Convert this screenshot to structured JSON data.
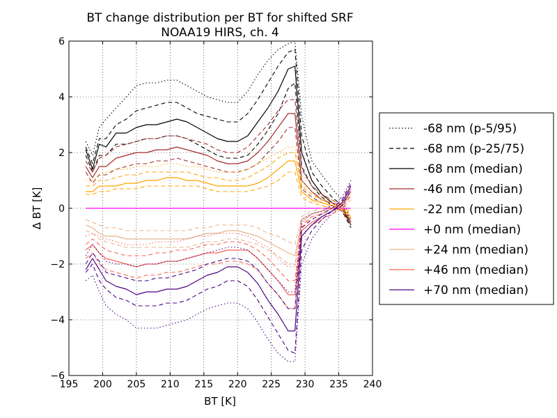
{
  "chart_data": {
    "type": "line",
    "title": "BT change distribution per BT for shifted SRF",
    "subtitle": "NOAA19 HIRS, ch. 4",
    "xlabel": "BT [K]",
    "ylabel": "Δ BT [K]",
    "xlim": [
      195,
      240
    ],
    "ylim": [
      -6,
      6
    ],
    "xticks": [
      "195",
      "200",
      "205",
      "210",
      "215",
      "220",
      "225",
      "230",
      "235",
      "240"
    ],
    "yticks": [
      "6",
      "4",
      "2",
      "0",
      "−2",
      "−4",
      "−6"
    ],
    "grid": true,
    "legend_position": "right",
    "x": [
      197.5,
      198.5,
      199.5,
      200.5,
      202,
      203.5,
      205,
      206.5,
      208,
      209.5,
      211,
      212.5,
      214,
      215.5,
      217,
      218.5,
      220,
      221.5,
      223,
      224.5,
      226,
      227.5,
      228.5,
      229.5,
      231,
      232.5,
      234,
      235.5,
      236.8
    ],
    "legend": [
      {
        "label": "-68 nm (p-5/95)",
        "color": "#000000",
        "dash": "dotted"
      },
      {
        "label": "-68 nm (p-25/75)",
        "color": "#000000",
        "dash": "dashed"
      },
      {
        "label": "-68 nm (median)",
        "color": "#000000",
        "dash": "solid"
      },
      {
        "label": "-46 nm (median)",
        "color": "#a52a2a",
        "dash": "solid"
      },
      {
        "label": "-22 nm (median)",
        "color": "#ffa500",
        "dash": "solid"
      },
      {
        "label": "+0 nm (median)",
        "color": "#ff00ff",
        "dash": "solid"
      },
      {
        "label": "+24 nm (median)",
        "color": "#e8b48c",
        "dash": "solid"
      },
      {
        "label": "+46 nm (median)",
        "color": "#fa6450",
        "dash": "solid"
      },
      {
        "label": "+70 nm (median)",
        "color": "#4b0082",
        "dash": "solid"
      }
    ],
    "series": [
      {
        "color": "#000000",
        "dash": "solid",
        "values": [
          2.1,
          1.4,
          2.3,
          2.2,
          2.7,
          2.7,
          2.9,
          3.0,
          3.0,
          3.1,
          3.2,
          3.1,
          2.9,
          2.7,
          2.5,
          2.4,
          2.4,
          2.6,
          3.1,
          3.6,
          4.2,
          5.0,
          5.1,
          2.0,
          1.0,
          0.5,
          0.2,
          0.0,
          -0.6
        ]
      },
      {
        "color": "#000000",
        "dash": "dashed",
        "values": [
          2.2,
          1.6,
          2.5,
          2.5,
          3.0,
          3.2,
          3.5,
          3.6,
          3.7,
          3.8,
          3.8,
          3.6,
          3.4,
          3.3,
          3.2,
          3.1,
          3.1,
          3.4,
          3.9,
          4.5,
          5.1,
          5.6,
          5.7,
          2.6,
          1.3,
          0.8,
          0.4,
          0.1,
          -0.5
        ]
      },
      {
        "color": "#000000",
        "dash": "dotted",
        "values": [
          2.4,
          1.9,
          2.9,
          3.2,
          3.6,
          4.0,
          4.4,
          4.5,
          4.5,
          4.6,
          4.6,
          4.4,
          4.2,
          4.0,
          3.9,
          3.8,
          3.8,
          4.2,
          4.8,
          5.3,
          5.7,
          5.9,
          6.0,
          3.3,
          1.7,
          1.2,
          0.7,
          0.3,
          -0.4
        ]
      },
      {
        "color": "#000000",
        "dash": "dashed",
        "values": [
          1.9,
          1.3,
          1.9,
          1.9,
          2.3,
          2.3,
          2.4,
          2.5,
          2.5,
          2.6,
          2.6,
          2.5,
          2.3,
          2.1,
          1.9,
          1.8,
          1.8,
          1.9,
          2.3,
          2.8,
          3.4,
          4.3,
          4.5,
          1.5,
          0.8,
          0.4,
          0.1,
          -0.1,
          -0.7
        ]
      },
      {
        "color": "#a52a2a",
        "dash": "solid",
        "values": [
          1.5,
          1.1,
          1.5,
          1.5,
          1.8,
          1.9,
          2.0,
          2.0,
          2.1,
          2.1,
          2.2,
          2.1,
          2.0,
          1.9,
          1.7,
          1.6,
          1.6,
          1.7,
          2.0,
          2.4,
          2.9,
          3.4,
          3.4,
          1.0,
          0.6,
          0.3,
          0.2,
          0.0,
          -0.5
        ]
      },
      {
        "color": "#a52a2a",
        "dash": "dashed",
        "values": [
          1.7,
          1.3,
          1.8,
          1.9,
          2.2,
          2.3,
          2.4,
          2.5,
          2.5,
          2.6,
          2.6,
          2.5,
          2.4,
          2.3,
          2.1,
          2.0,
          2.0,
          2.2,
          2.6,
          3.0,
          3.5,
          3.9,
          3.9,
          1.4,
          0.8,
          0.5,
          0.3,
          0.1,
          -0.4
        ]
      },
      {
        "color": "#a52a2a",
        "dash": "dashed",
        "values": [
          1.3,
          0.9,
          1.2,
          1.2,
          1.4,
          1.5,
          1.6,
          1.6,
          1.7,
          1.7,
          1.8,
          1.7,
          1.6,
          1.5,
          1.4,
          1.3,
          1.3,
          1.4,
          1.6,
          2.0,
          2.4,
          2.9,
          2.9,
          0.7,
          0.4,
          0.2,
          0.1,
          -0.1,
          -0.6
        ]
      },
      {
        "color": "#ffa500",
        "dash": "solid",
        "values": [
          0.6,
          0.6,
          0.8,
          0.8,
          0.8,
          0.9,
          0.9,
          1.0,
          1.0,
          1.1,
          1.1,
          1.0,
          1.0,
          0.9,
          0.8,
          0.8,
          0.8,
          0.8,
          0.9,
          1.1,
          1.4,
          1.7,
          1.7,
          0.6,
          0.3,
          0.2,
          0.1,
          0.0,
          -0.3
        ]
      },
      {
        "color": "#ffa500",
        "dash": "dashed",
        "values": [
          0.8,
          0.8,
          1.0,
          1.0,
          1.1,
          1.2,
          1.2,
          1.3,
          1.3,
          1.3,
          1.3,
          1.3,
          1.2,
          1.1,
          1.1,
          1.0,
          1.0,
          1.1,
          1.3,
          1.5,
          1.8,
          2.0,
          2.0,
          0.8,
          0.5,
          0.3,
          0.2,
          0.1,
          -0.2
        ]
      },
      {
        "color": "#ffa500",
        "dash": "dashed",
        "values": [
          0.5,
          0.5,
          0.6,
          0.6,
          0.7,
          0.7,
          0.7,
          0.8,
          0.8,
          0.8,
          0.8,
          0.8,
          0.8,
          0.7,
          0.6,
          0.6,
          0.6,
          0.6,
          0.7,
          0.8,
          1.0,
          1.3,
          1.3,
          0.4,
          0.2,
          0.1,
          0.0,
          -0.1,
          -0.4
        ]
      },
      {
        "color": "#ffa500",
        "dash": "dotted",
        "values": [
          1.0,
          1.0,
          1.2,
          1.3,
          1.4,
          1.4,
          1.5,
          1.5,
          1.5,
          1.6,
          1.6,
          1.5,
          1.5,
          1.4,
          1.3,
          1.3,
          1.3,
          1.4,
          1.6,
          1.8,
          2.0,
          2.2,
          2.2,
          1.0,
          0.6,
          0.4,
          0.3,
          0.1,
          -0.1
        ]
      },
      {
        "color": "#ff00ff",
        "dash": "solid",
        "values": [
          0,
          0,
          0,
          0,
          0,
          0,
          0,
          0,
          0,
          0,
          0,
          0,
          0,
          0,
          0,
          0,
          0,
          0,
          0,
          0,
          0,
          0,
          0,
          0,
          0,
          0,
          0,
          0,
          0
        ]
      },
      {
        "color": "#e8b48c",
        "dash": "solid",
        "values": [
          -0.6,
          -0.7,
          -0.9,
          -1.0,
          -1.0,
          -1.1,
          -1.1,
          -1.1,
          -1.1,
          -1.1,
          -1.1,
          -1.1,
          -1.0,
          -0.9,
          -0.9,
          -0.8,
          -0.8,
          -0.9,
          -1.0,
          -1.2,
          -1.4,
          -1.6,
          -1.7,
          -0.5,
          -0.2,
          -0.1,
          0.0,
          0.1,
          0.4
        ]
      },
      {
        "color": "#e8b48c",
        "dash": "dashed",
        "values": [
          -0.4,
          -0.5,
          -0.6,
          -0.7,
          -0.7,
          -0.8,
          -0.8,
          -0.8,
          -0.8,
          -0.8,
          -0.8,
          -0.8,
          -0.7,
          -0.7,
          -0.6,
          -0.6,
          -0.6,
          -0.6,
          -0.7,
          -0.9,
          -1.0,
          -1.2,
          -1.3,
          -0.3,
          -0.1,
          0.0,
          0.1,
          0.2,
          0.5
        ]
      },
      {
        "color": "#e8b48c",
        "dash": "dashed",
        "values": [
          -0.8,
          -0.9,
          -1.1,
          -1.2,
          -1.3,
          -1.4,
          -1.4,
          -1.4,
          -1.4,
          -1.4,
          -1.4,
          -1.4,
          -1.3,
          -1.2,
          -1.2,
          -1.1,
          -1.1,
          -1.2,
          -1.3,
          -1.5,
          -1.7,
          -2.0,
          -2.0,
          -0.7,
          -0.3,
          -0.2,
          -0.1,
          0.0,
          0.3
        ]
      },
      {
        "color": "#fa6450",
        "dash": "solid",
        "values": [
          -1.5,
          -1.3,
          -1.6,
          -1.8,
          -1.9,
          -2.0,
          -2.1,
          -2.0,
          -2.0,
          -1.9,
          -1.9,
          -1.8,
          -1.7,
          -1.6,
          -1.6,
          -1.5,
          -1.5,
          -1.5,
          -1.8,
          -2.2,
          -2.6,
          -3.1,
          -3.1,
          -0.8,
          -0.5,
          -0.3,
          -0.1,
          0.1,
          0.6
        ]
      },
      {
        "color": "#fa6450",
        "dash": "dashed",
        "values": [
          -1.3,
          -1.1,
          -1.3,
          -1.5,
          -1.6,
          -1.7,
          -1.7,
          -1.7,
          -1.6,
          -1.6,
          -1.5,
          -1.5,
          -1.4,
          -1.3,
          -1.3,
          -1.2,
          -1.2,
          -1.3,
          -1.5,
          -1.8,
          -2.2,
          -2.6,
          -2.6,
          -0.6,
          -0.3,
          -0.2,
          0.0,
          0.2,
          0.7
        ]
      },
      {
        "color": "#fa6450",
        "dash": "dashed",
        "values": [
          -1.8,
          -1.6,
          -2.0,
          -2.2,
          -2.3,
          -2.4,
          -2.5,
          -2.4,
          -2.4,
          -2.3,
          -2.3,
          -2.2,
          -2.1,
          -2.0,
          -2.0,
          -1.9,
          -1.9,
          -2.0,
          -2.2,
          -2.7,
          -3.1,
          -3.6,
          -3.6,
          -1.0,
          -0.6,
          -0.4,
          -0.2,
          0.0,
          0.5
        ]
      },
      {
        "color": "#fa6450",
        "dash": "dotted",
        "values": [
          -1.0,
          -0.9,
          -1.0,
          -1.1,
          -1.2,
          -1.3,
          -1.3,
          -1.3,
          -1.2,
          -1.2,
          -1.2,
          -1.1,
          -1.0,
          -1.0,
          -0.9,
          -0.9,
          -0.9,
          -1.0,
          -1.2,
          -1.4,
          -1.8,
          -2.1,
          -2.1,
          -0.4,
          -0.2,
          -0.1,
          0.1,
          0.3,
          0.8
        ]
      },
      {
        "color": "#4b0082",
        "dash": "solid",
        "values": [
          -2.2,
          -1.8,
          -2.2,
          -2.6,
          -2.8,
          -2.9,
          -3.1,
          -3.0,
          -3.0,
          -2.9,
          -2.9,
          -2.8,
          -2.6,
          -2.4,
          -2.3,
          -2.1,
          -2.1,
          -2.3,
          -2.7,
          -3.3,
          -3.8,
          -4.4,
          -4.4,
          -1.0,
          -0.6,
          -0.3,
          -0.1,
          0.2,
          0.8
        ]
      },
      {
        "color": "#4b0082",
        "dash": "dashed",
        "values": [
          -2.3,
          -2.0,
          -2.6,
          -2.9,
          -3.2,
          -3.3,
          -3.5,
          -3.5,
          -3.5,
          -3.4,
          -3.4,
          -3.3,
          -3.1,
          -2.9,
          -2.8,
          -2.6,
          -2.6,
          -2.8,
          -3.3,
          -3.9,
          -4.5,
          -5.1,
          -5.2,
          -1.5,
          -0.8,
          -0.4,
          -0.1,
          0.1,
          0.7
        ]
      },
      {
        "color": "#4b0082",
        "dash": "dashed",
        "values": [
          -2.0,
          -1.6,
          -1.9,
          -2.3,
          -2.4,
          -2.5,
          -2.6,
          -2.6,
          -2.5,
          -2.5,
          -2.4,
          -2.3,
          -2.2,
          -2.0,
          -1.9,
          -1.8,
          -1.8,
          -1.9,
          -2.2,
          -2.7,
          -3.1,
          -3.6,
          -3.6,
          -0.7,
          -0.4,
          -0.2,
          0.0,
          0.3,
          0.9
        ]
      },
      {
        "color": "#4b0082",
        "dash": "dotted",
        "values": [
          -2.6,
          -2.4,
          -3.0,
          -3.5,
          -3.8,
          -4.0,
          -4.3,
          -4.3,
          -4.3,
          -4.2,
          -4.1,
          -4.0,
          -3.8,
          -3.6,
          -3.5,
          -3.4,
          -3.4,
          -3.6,
          -4.1,
          -4.7,
          -5.2,
          -5.5,
          -5.5,
          -2.0,
          -1.1,
          -0.6,
          -0.2,
          0.1,
          0.6
        ]
      },
      {
        "color": "#4b0082",
        "dash": "dotted",
        "values": [
          -1.7,
          -1.3,
          -1.6,
          -1.9,
          -2.0,
          -2.0,
          -2.1,
          -2.0,
          -2.0,
          -1.9,
          -1.9,
          -1.8,
          -1.7,
          -1.6,
          -1.5,
          -1.4,
          -1.4,
          -1.5,
          -1.8,
          -2.2,
          -2.6,
          -3.0,
          -3.0,
          -0.4,
          -0.2,
          -0.1,
          0.1,
          0.4,
          1.0
        ]
      }
    ]
  }
}
